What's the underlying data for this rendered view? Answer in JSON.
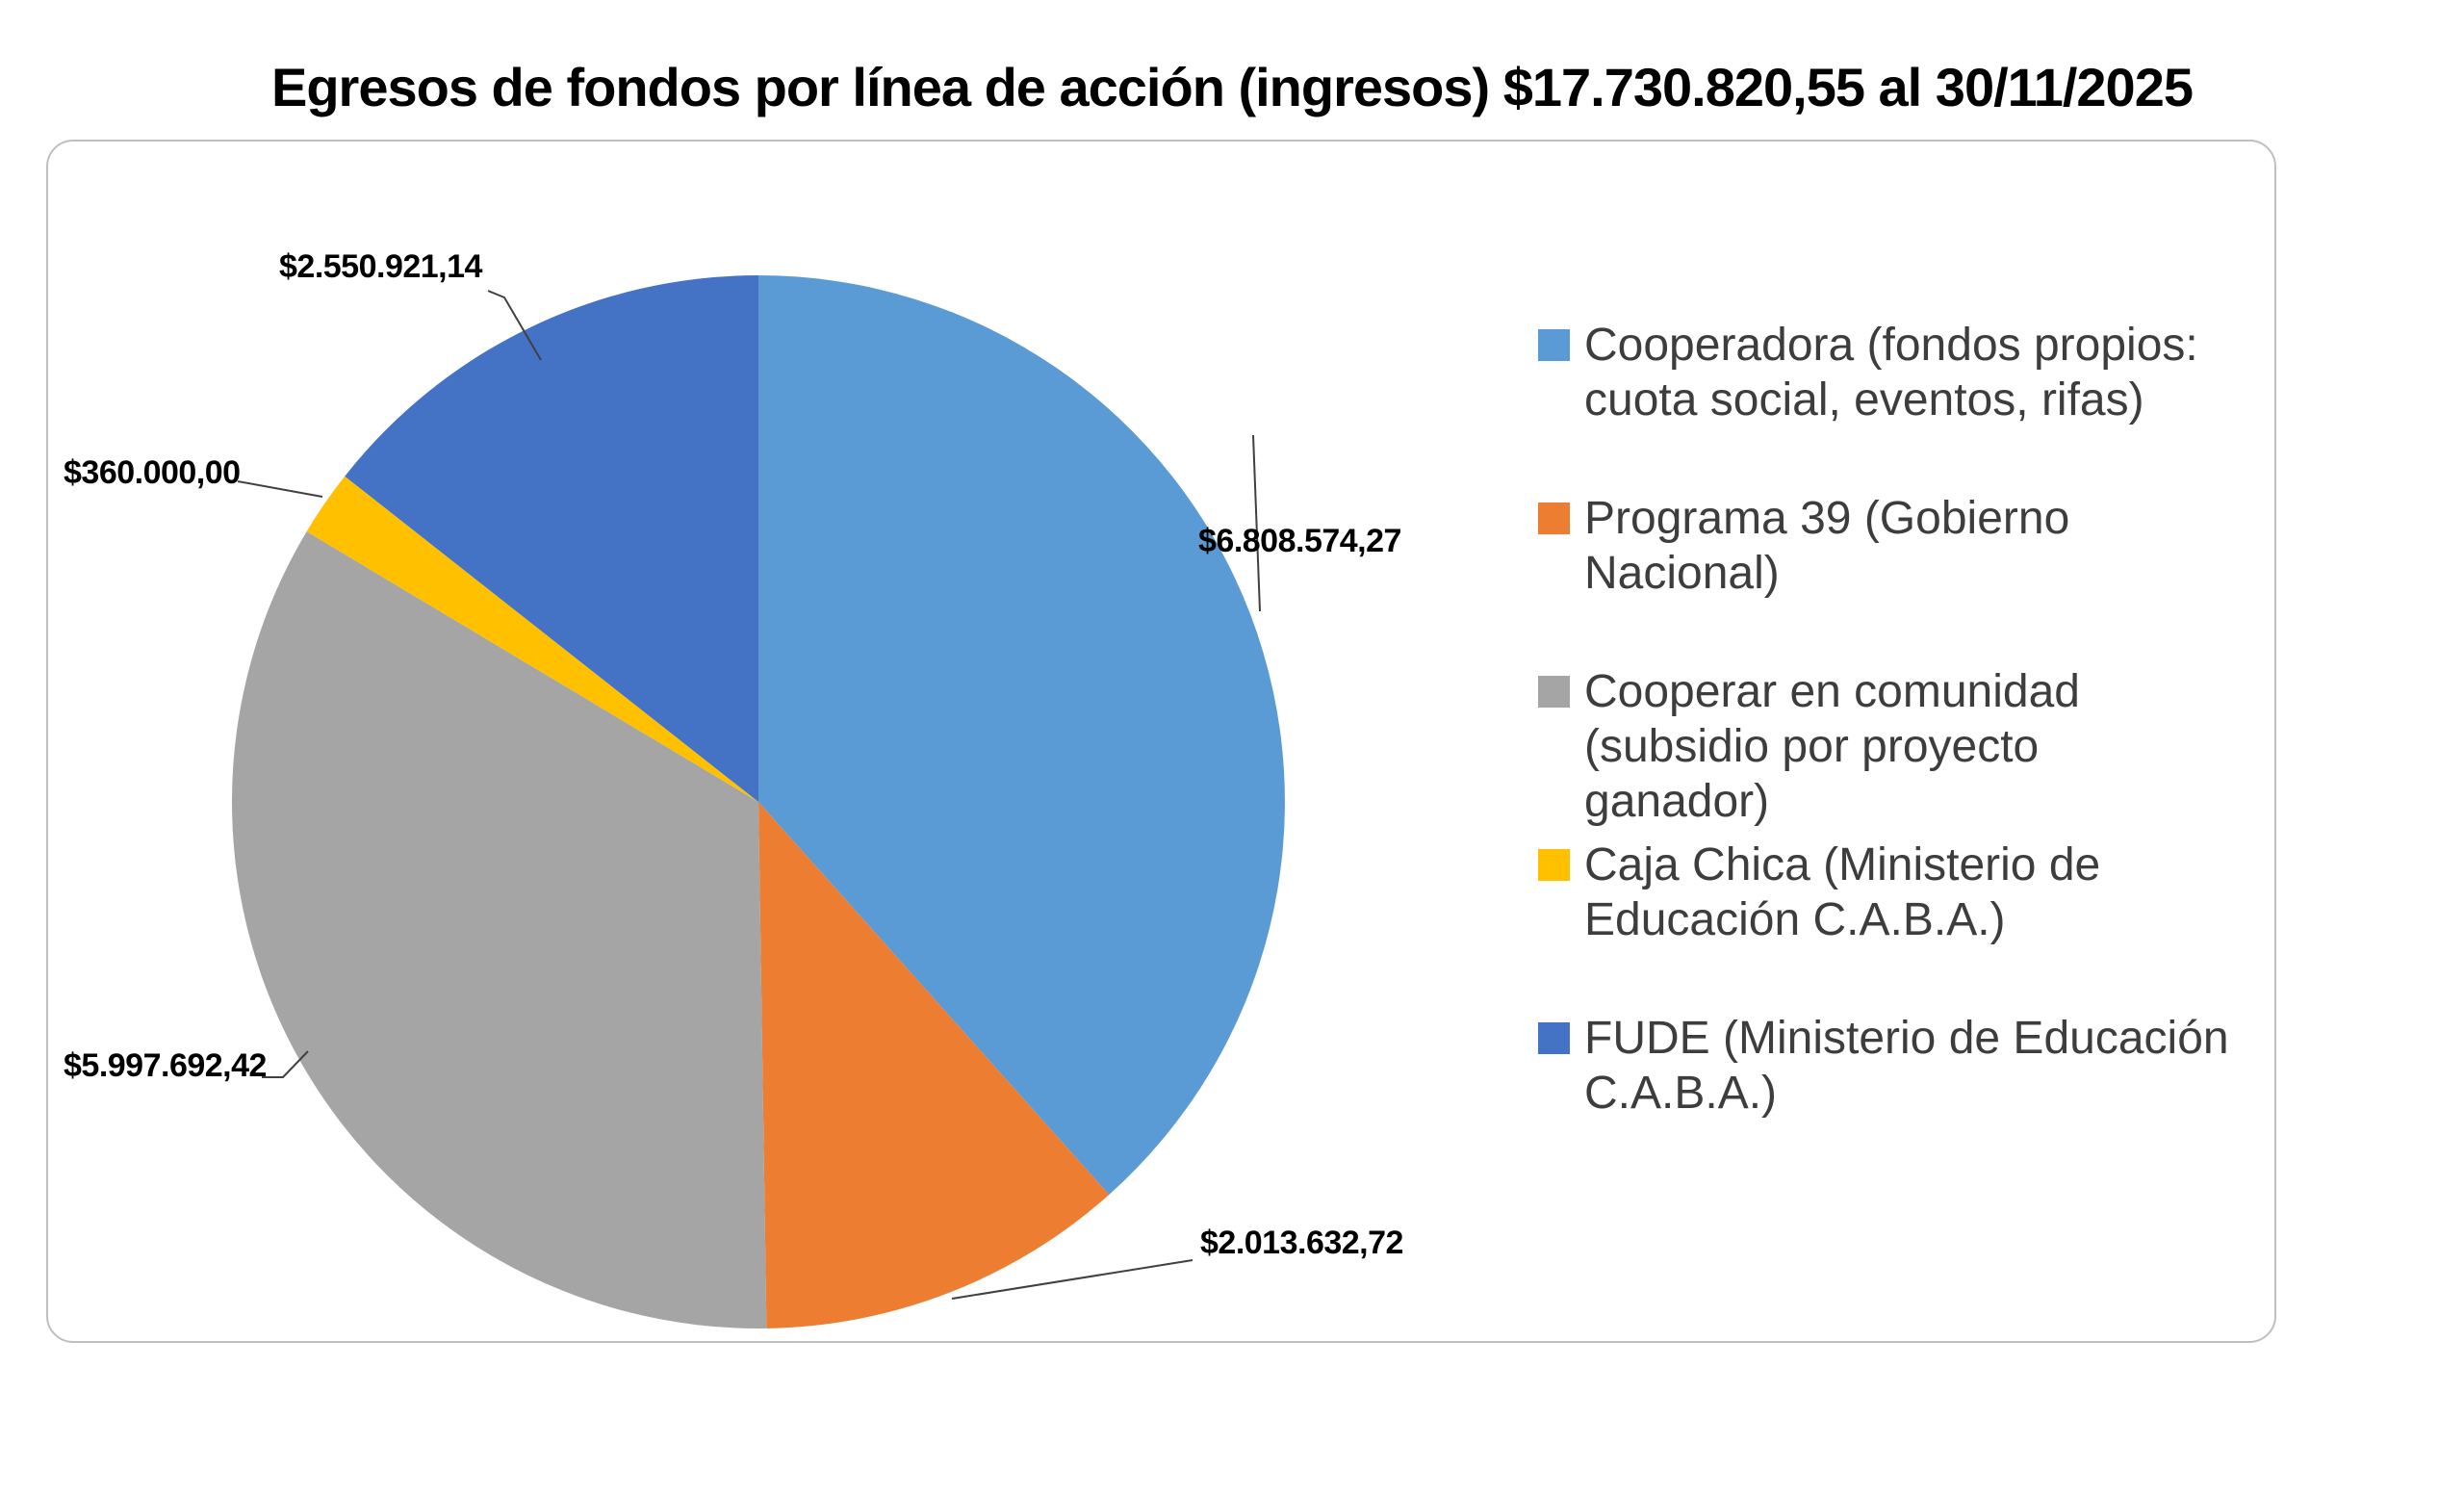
{
  "chart_data": {
    "type": "pie",
    "title": "Egresos de fondos por línea de acción (ingresos) $17.730.820,55 al 30/11/2025",
    "total": 17730820.55,
    "total_label": "$17.730.820,55",
    "as_of_date": "30/11/2025",
    "categories": [
      "Cooperadora (fondos propios: cuota social, eventos, rifas)",
      "Programa 39 (Gobierno Nacional)",
      "Cooperar en comunidad (subsidio por proyecto ganador)",
      "Caja Chica (Ministerio de Educación C.A.B.A.)",
      "FUDE (Ministerio de Educación C.A.B.A.)"
    ],
    "values": [
      6808574.27,
      2013632.72,
      5997692.42,
      360000.0,
      2550921.14
    ],
    "labels": [
      "$6.808.574,27",
      "$2.013.632,72",
      "$5.997.692,42",
      "$360.000,00",
      "$2.550.921,14"
    ],
    "colors": [
      "#5B9BD5",
      "#ED7D31",
      "#A5A5A5",
      "#FFC000",
      "#4472C4"
    ],
    "start_angle": 0,
    "direction": "clockwise",
    "legend_position": "right",
    "grid": false
  },
  "legend": {
    "items": [
      {
        "label": "Cooperadora (fondos propios:\ncuota social, eventos, rifas)",
        "color": "#5B9BD5"
      },
      {
        "label": "Programa 39 (Gobierno\nNacional)",
        "color": "#ED7D31"
      },
      {
        "label": "Cooperar en comunidad\n(subsidio por proyecto\nganador)",
        "color": "#A5A5A5"
      },
      {
        "label": "Caja Chica (Ministerio de\nEducación C.A.B.A.)",
        "color": "#FFC000"
      },
      {
        "label": "FUDE (Ministerio de Educación\nC.A.B.A.)",
        "color": "#4472C4"
      }
    ]
  }
}
